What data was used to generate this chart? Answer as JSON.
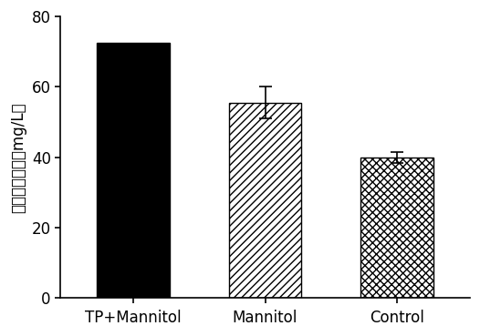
{
  "categories": [
    "TP+Mannitol",
    "Mannitol",
    "Control"
  ],
  "values": [
    72.5,
    55.5,
    40.0
  ],
  "errors": [
    0,
    4.5,
    1.5
  ],
  "bar_colors": [
    "#000000",
    "#ffffff",
    "#ffffff"
  ],
  "hatch_patterns": [
    "",
    "////",
    "xxxx"
  ],
  "ylim": [
    0,
    80
  ],
  "yticks": [
    0,
    20,
    40,
    60,
    80
  ],
  "ylabel_line1": "岩藻黄质浓度",
  "ylabel_line2": "mg/L",
  "background_color": "#ffffff",
  "bar_width": 0.55,
  "edge_color": "#000000",
  "tick_fontsize": 12,
  "label_fontsize": 12
}
